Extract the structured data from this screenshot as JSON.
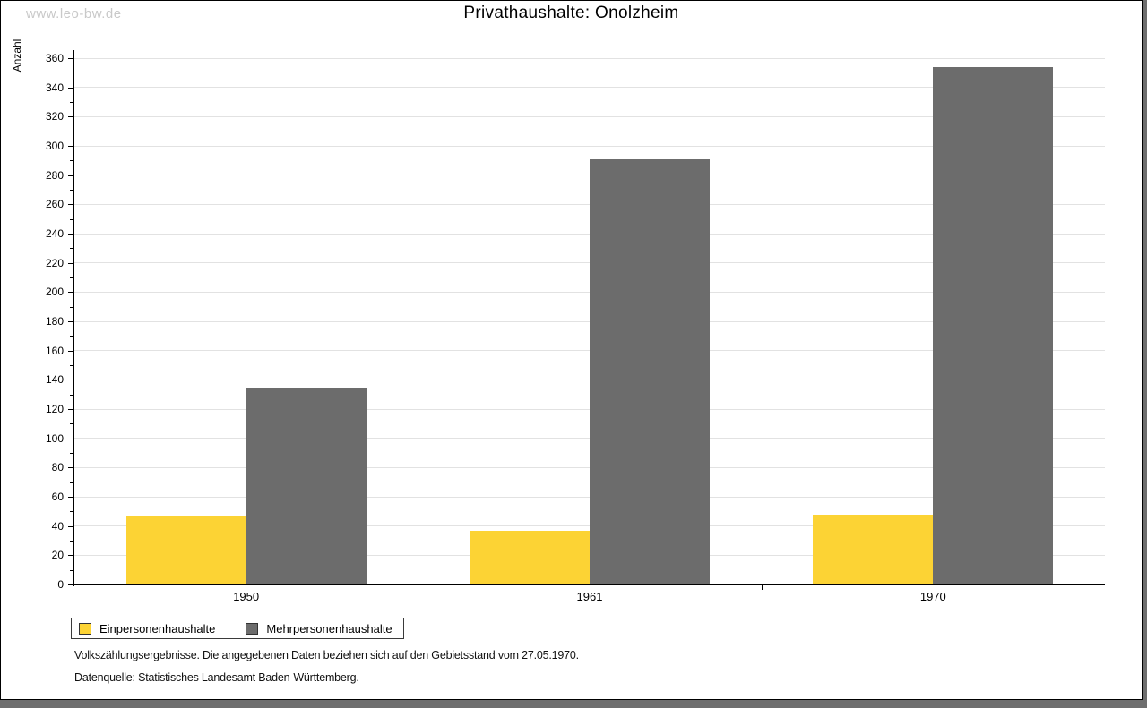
{
  "watermark": "www.leo-bw.de",
  "chart_data": {
    "type": "bar",
    "title": "Privathaushalte: Onolzheim",
    "ylabel": "Anzahl",
    "xlabel": "",
    "categories": [
      "1950",
      "1961",
      "1970"
    ],
    "series": [
      {
        "name": "Einpersonenhaushalte",
        "color": "#fcd334",
        "values": [
          47,
          37,
          48
        ]
      },
      {
        "name": "Mehrpersonenhaushalte",
        "color": "#6c6c6c",
        "values": [
          134,
          291,
          354
        ]
      }
    ],
    "ylim": [
      0,
      360
    ],
    "y_major_step": 20,
    "y_minor_step": 10,
    "grid": true,
    "legend_position": "bottom-left",
    "legend_border": true
  },
  "footer": {
    "line1": "Volkszählungsergebnisse. Die angegebenen Daten beziehen sich auf den Gebietsstand vom 27.05.1970.",
    "line2": "Datenquelle: Statistisches Landesamt Baden-Württemberg."
  },
  "colors": {
    "background_outside": "#6e6e6e",
    "card_background": "#ffffff",
    "card_border": "#000000",
    "gridline": "#e2e2e2",
    "axis": "#000000",
    "watermark": "#c9c9c9"
  }
}
